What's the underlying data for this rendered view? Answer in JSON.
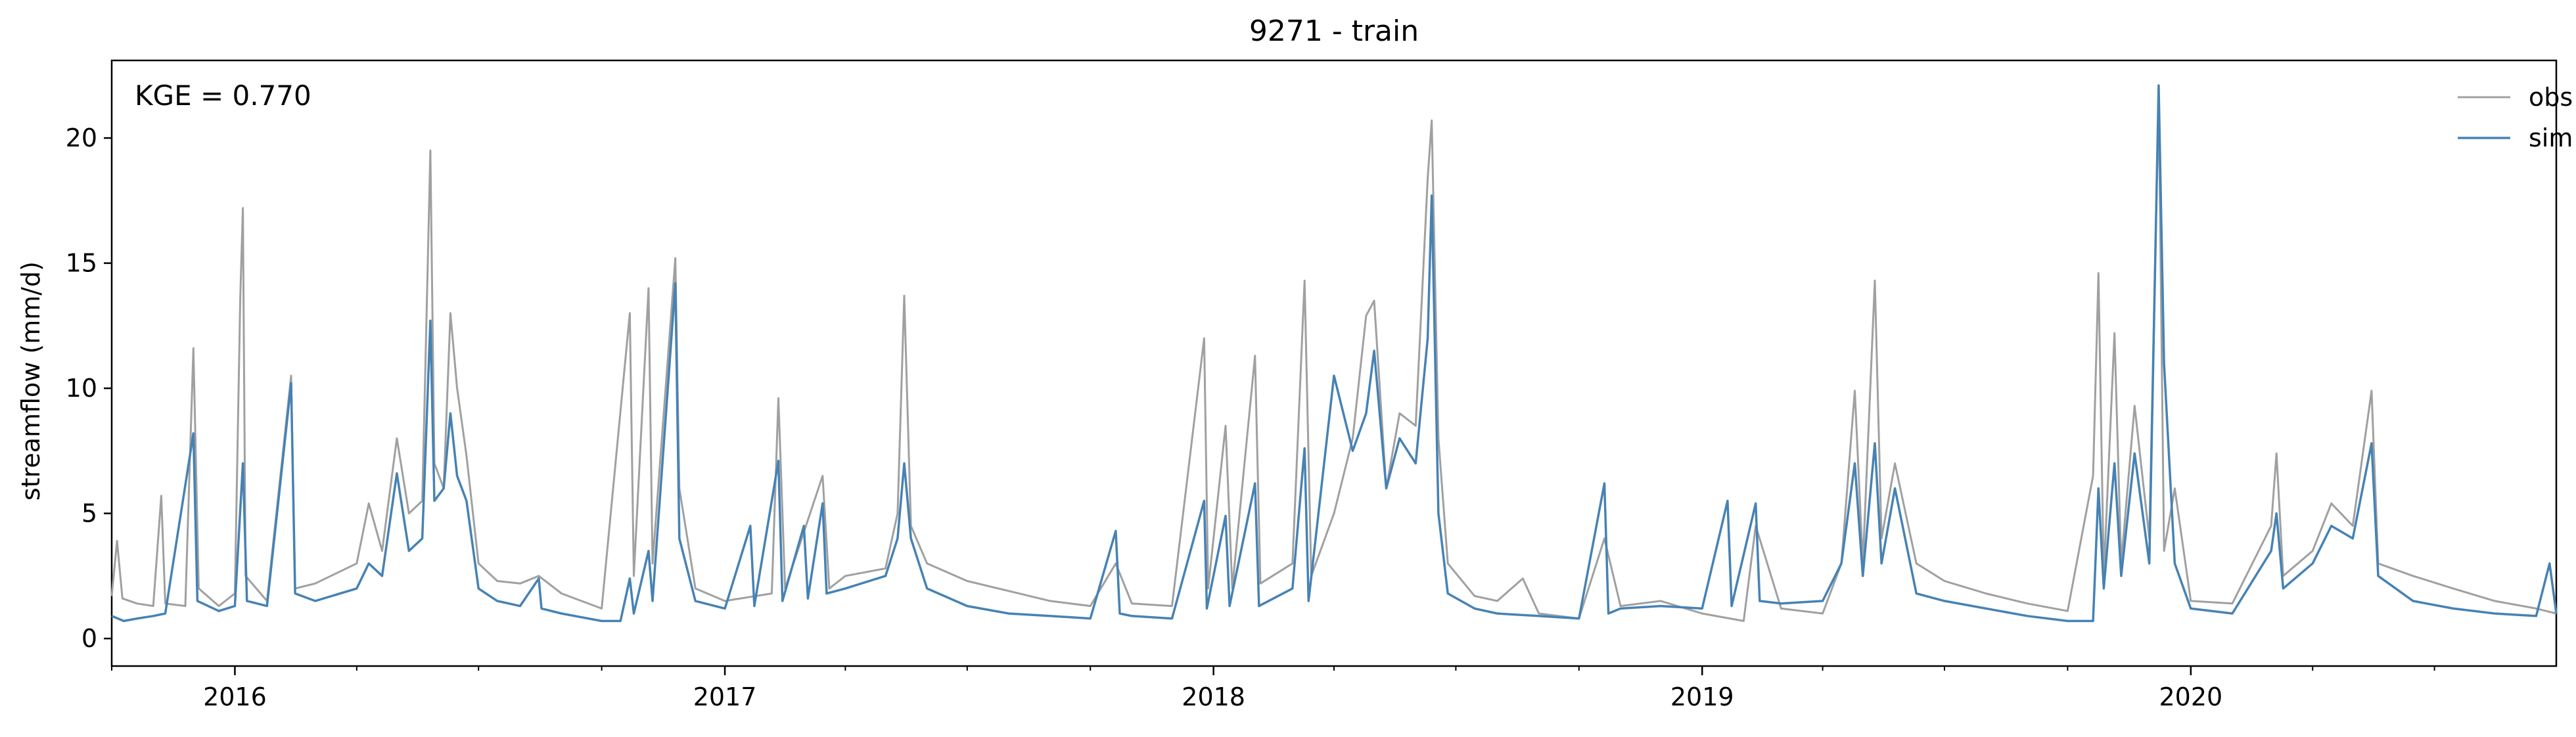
{
  "chart_data": {
    "type": "line",
    "title": "9271 - train",
    "xlabel": "",
    "ylabel": "streamflow (mm/d)",
    "annotation": "KGE = 0.770",
    "xlim": [
      "2015-10-01",
      "2020-09-30"
    ],
    "ylim": [
      -1.1,
      23.1
    ],
    "yticks": [
      0,
      5,
      10,
      15,
      20
    ],
    "ytick_labels": [
      "0",
      "5",
      "10",
      "15",
      "20"
    ],
    "xticks": [
      "2016-01-01",
      "2017-01-01",
      "2018-01-01",
      "2019-01-01",
      "2020-01-01"
    ],
    "xtick_labels": [
      "2016",
      "2017",
      "2018",
      "2019",
      "2020"
    ],
    "grid": false,
    "legend": {
      "position": "top-right",
      "frame": false
    },
    "series": [
      {
        "name": "obs",
        "color": "#a0a0a0",
        "points": [
          [
            "2015-10-01",
            1.7
          ],
          [
            "2015-10-05",
            3.9
          ],
          [
            "2015-10-09",
            1.6
          ],
          [
            "2015-10-20",
            1.4
          ],
          [
            "2015-11-01",
            1.3
          ],
          [
            "2015-11-07",
            5.7
          ],
          [
            "2015-11-10",
            1.4
          ],
          [
            "2015-11-25",
            1.3
          ],
          [
            "2015-12-01",
            11.6
          ],
          [
            "2015-12-05",
            2.0
          ],
          [
            "2015-12-20",
            1.3
          ],
          [
            "2016-01-01",
            1.8
          ],
          [
            "2016-01-05",
            13.6
          ],
          [
            "2016-01-07",
            17.2
          ],
          [
            "2016-01-09",
            2.5
          ],
          [
            "2016-01-25",
            1.5
          ],
          [
            "2016-02-12",
            10.5
          ],
          [
            "2016-02-15",
            2.0
          ],
          [
            "2016-03-01",
            2.2
          ],
          [
            "2016-04-01",
            3.0
          ],
          [
            "2016-04-10",
            5.4
          ],
          [
            "2016-04-20",
            3.5
          ],
          [
            "2016-05-01",
            8.0
          ],
          [
            "2016-05-10",
            5.0
          ],
          [
            "2016-05-20",
            5.5
          ],
          [
            "2016-05-26",
            19.5
          ],
          [
            "2016-05-29",
            7.0
          ],
          [
            "2016-06-05",
            6.0
          ],
          [
            "2016-06-10",
            13.0
          ],
          [
            "2016-06-15",
            10.0
          ],
          [
            "2016-06-22",
            7.3
          ],
          [
            "2016-07-01",
            3.0
          ],
          [
            "2016-07-15",
            2.3
          ],
          [
            "2016-08-01",
            2.2
          ],
          [
            "2016-08-15",
            2.5
          ],
          [
            "2016-09-01",
            1.8
          ],
          [
            "2016-10-01",
            1.2
          ],
          [
            "2016-10-22",
            13.0
          ],
          [
            "2016-10-25",
            2.5
          ],
          [
            "2016-11-05",
            14.0
          ],
          [
            "2016-11-08",
            3.0
          ],
          [
            "2016-11-25",
            15.2
          ],
          [
            "2016-11-28",
            6.0
          ],
          [
            "2016-12-10",
            2.0
          ],
          [
            "2017-01-01",
            1.5
          ],
          [
            "2017-02-05",
            1.8
          ],
          [
            "2017-02-10",
            9.6
          ],
          [
            "2017-02-15",
            2.0
          ],
          [
            "2017-03-15",
            6.5
          ],
          [
            "2017-03-20",
            2.0
          ],
          [
            "2017-04-01",
            2.5
          ],
          [
            "2017-05-01",
            2.8
          ],
          [
            "2017-05-10",
            5.0
          ],
          [
            "2017-05-15",
            13.7
          ],
          [
            "2017-05-20",
            4.5
          ],
          [
            "2017-06-01",
            3.0
          ],
          [
            "2017-07-01",
            2.3
          ],
          [
            "2017-08-01",
            1.9
          ],
          [
            "2017-09-01",
            1.5
          ],
          [
            "2017-10-01",
            1.3
          ],
          [
            "2017-10-20",
            3.0
          ],
          [
            "2017-11-01",
            1.4
          ],
          [
            "2017-12-01",
            1.3
          ],
          [
            "2017-12-25",
            12.0
          ],
          [
            "2017-12-28",
            2.0
          ],
          [
            "2018-01-10",
            8.5
          ],
          [
            "2018-01-15",
            2.0
          ],
          [
            "2018-02-01",
            11.3
          ],
          [
            "2018-02-05",
            2.2
          ],
          [
            "2018-03-01",
            3.0
          ],
          [
            "2018-03-10",
            14.3
          ],
          [
            "2018-03-15",
            2.5
          ],
          [
            "2018-04-01",
            5.0
          ],
          [
            "2018-04-15",
            8.0
          ],
          [
            "2018-04-25",
            12.9
          ],
          [
            "2018-05-01",
            13.5
          ],
          [
            "2018-05-10",
            6.0
          ],
          [
            "2018-05-20",
            9.0
          ],
          [
            "2018-06-01",
            8.5
          ],
          [
            "2018-06-10",
            18.4
          ],
          [
            "2018-06-13",
            20.7
          ],
          [
            "2018-06-18",
            8.0
          ],
          [
            "2018-06-25",
            3.0
          ],
          [
            "2018-07-15",
            1.7
          ],
          [
            "2018-08-01",
            1.5
          ],
          [
            "2018-08-20",
            2.4
          ],
          [
            "2018-09-01",
            1.0
          ],
          [
            "2018-10-01",
            0.8
          ],
          [
            "2018-10-20",
            4.0
          ],
          [
            "2018-11-01",
            1.3
          ],
          [
            "2018-12-01",
            1.5
          ],
          [
            "2019-01-01",
            1.0
          ],
          [
            "2019-02-01",
            0.7
          ],
          [
            "2019-02-10",
            4.5
          ],
          [
            "2019-03-01",
            1.2
          ],
          [
            "2019-04-01",
            1.0
          ],
          [
            "2019-04-15",
            3.0
          ],
          [
            "2019-04-25",
            9.9
          ],
          [
            "2019-05-01",
            3.0
          ],
          [
            "2019-05-10",
            14.3
          ],
          [
            "2019-05-15",
            4.0
          ],
          [
            "2019-05-25",
            7.0
          ],
          [
            "2019-06-10",
            3.0
          ],
          [
            "2019-07-01",
            2.3
          ],
          [
            "2019-08-01",
            1.8
          ],
          [
            "2019-09-01",
            1.4
          ],
          [
            "2019-10-01",
            1.1
          ],
          [
            "2019-10-20",
            6.5
          ],
          [
            "2019-10-24",
            14.6
          ],
          [
            "2019-10-28",
            2.5
          ],
          [
            "2019-11-05",
            12.2
          ],
          [
            "2019-11-10",
            3.0
          ],
          [
            "2019-11-20",
            9.3
          ],
          [
            "2019-12-01",
            4.0
          ],
          [
            "2019-12-08",
            21.8
          ],
          [
            "2019-12-12",
            3.5
          ],
          [
            "2019-12-20",
            6.0
          ],
          [
            "2020-01-01",
            1.5
          ],
          [
            "2020-02-01",
            1.4
          ],
          [
            "2020-03-01",
            4.5
          ],
          [
            "2020-03-05",
            7.4
          ],
          [
            "2020-03-10",
            2.5
          ],
          [
            "2020-04-01",
            3.5
          ],
          [
            "2020-04-15",
            5.4
          ],
          [
            "2020-05-01",
            4.5
          ],
          [
            "2020-05-15",
            9.9
          ],
          [
            "2020-05-20",
            3.0
          ],
          [
            "2020-06-15",
            2.5
          ],
          [
            "2020-07-15",
            2.0
          ],
          [
            "2020-08-15",
            1.5
          ],
          [
            "2020-09-15",
            1.2
          ],
          [
            "2020-09-30",
            1.0
          ]
        ]
      },
      {
        "name": "sim",
        "color": "#4682b4",
        "points": [
          [
            "2015-10-01",
            0.9
          ],
          [
            "2015-10-10",
            0.7
          ],
          [
            "2015-10-20",
            0.8
          ],
          [
            "2015-11-01",
            0.9
          ],
          [
            "2015-11-10",
            1.0
          ],
          [
            "2015-12-01",
            8.2
          ],
          [
            "2015-12-04",
            1.5
          ],
          [
            "2015-12-20",
            1.1
          ],
          [
            "2016-01-01",
            1.3
          ],
          [
            "2016-01-07",
            7.0
          ],
          [
            "2016-01-10",
            1.5
          ],
          [
            "2016-01-25",
            1.3
          ],
          [
            "2016-02-12",
            10.2
          ],
          [
            "2016-02-15",
            1.8
          ],
          [
            "2016-03-01",
            1.5
          ],
          [
            "2016-04-01",
            2.0
          ],
          [
            "2016-04-10",
            3.0
          ],
          [
            "2016-04-20",
            2.5
          ],
          [
            "2016-05-01",
            6.6
          ],
          [
            "2016-05-10",
            3.5
          ],
          [
            "2016-05-20",
            4.0
          ],
          [
            "2016-05-26",
            12.7
          ],
          [
            "2016-05-29",
            5.5
          ],
          [
            "2016-06-05",
            6.0
          ],
          [
            "2016-06-10",
            9.0
          ],
          [
            "2016-06-15",
            6.5
          ],
          [
            "2016-06-22",
            5.5
          ],
          [
            "2016-07-01",
            2.0
          ],
          [
            "2016-07-15",
            1.5
          ],
          [
            "2016-08-01",
            1.3
          ],
          [
            "2016-08-15",
            2.4
          ],
          [
            "2016-08-17",
            1.2
          ],
          [
            "2016-09-01",
            1.0
          ],
          [
            "2016-10-01",
            0.7
          ],
          [
            "2016-10-15",
            0.7
          ],
          [
            "2016-10-22",
            2.4
          ],
          [
            "2016-10-25",
            1.0
          ],
          [
            "2016-11-05",
            3.5
          ],
          [
            "2016-11-08",
            1.5
          ],
          [
            "2016-11-25",
            14.2
          ],
          [
            "2016-11-28",
            4.0
          ],
          [
            "2016-12-10",
            1.5
          ],
          [
            "2017-01-01",
            1.2
          ],
          [
            "2017-01-20",
            4.5
          ],
          [
            "2017-01-23",
            1.3
          ],
          [
            "2017-02-10",
            7.1
          ],
          [
            "2017-02-13",
            1.5
          ],
          [
            "2017-03-01",
            4.5
          ],
          [
            "2017-03-04",
            1.6
          ],
          [
            "2017-03-15",
            5.4
          ],
          [
            "2017-03-18",
            1.8
          ],
          [
            "2017-04-01",
            2.0
          ],
          [
            "2017-05-01",
            2.5
          ],
          [
            "2017-05-10",
            4.0
          ],
          [
            "2017-05-15",
            7.0
          ],
          [
            "2017-05-20",
            4.0
          ],
          [
            "2017-06-01",
            2.0
          ],
          [
            "2017-07-01",
            1.3
          ],
          [
            "2017-08-01",
            1.0
          ],
          [
            "2017-09-01",
            0.9
          ],
          [
            "2017-10-01",
            0.8
          ],
          [
            "2017-10-20",
            4.3
          ],
          [
            "2017-10-23",
            1.0
          ],
          [
            "2017-11-01",
            0.9
          ],
          [
            "2017-12-01",
            0.8
          ],
          [
            "2017-12-25",
            5.5
          ],
          [
            "2017-12-27",
            1.2
          ],
          [
            "2018-01-10",
            4.9
          ],
          [
            "2018-01-13",
            1.3
          ],
          [
            "2018-02-01",
            6.2
          ],
          [
            "2018-02-04",
            1.3
          ],
          [
            "2018-03-01",
            2.0
          ],
          [
            "2018-03-10",
            7.6
          ],
          [
            "2018-03-13",
            1.5
          ],
          [
            "2018-04-01",
            10.5
          ],
          [
            "2018-04-15",
            7.5
          ],
          [
            "2018-04-25",
            9.0
          ],
          [
            "2018-05-01",
            11.5
          ],
          [
            "2018-05-10",
            6.0
          ],
          [
            "2018-05-20",
            8.0
          ],
          [
            "2018-06-01",
            7.0
          ],
          [
            "2018-06-10",
            12.0
          ],
          [
            "2018-06-13",
            17.7
          ],
          [
            "2018-06-18",
            5.0
          ],
          [
            "2018-06-25",
            1.8
          ],
          [
            "2018-07-15",
            1.2
          ],
          [
            "2018-08-01",
            1.0
          ],
          [
            "2018-09-01",
            0.9
          ],
          [
            "2018-10-01",
            0.8
          ],
          [
            "2018-10-20",
            6.2
          ],
          [
            "2018-10-23",
            1.0
          ],
          [
            "2018-11-01",
            1.2
          ],
          [
            "2018-12-01",
            1.3
          ],
          [
            "2019-01-01",
            1.2
          ],
          [
            "2019-01-20",
            5.5
          ],
          [
            "2019-01-23",
            1.3
          ],
          [
            "2019-02-10",
            5.4
          ],
          [
            "2019-02-13",
            1.5
          ],
          [
            "2019-03-01",
            1.4
          ],
          [
            "2019-04-01",
            1.5
          ],
          [
            "2019-04-15",
            3.0
          ],
          [
            "2019-04-25",
            7.0
          ],
          [
            "2019-05-01",
            2.5
          ],
          [
            "2019-05-10",
            7.8
          ],
          [
            "2019-05-15",
            3.0
          ],
          [
            "2019-05-25",
            6.0
          ],
          [
            "2019-06-10",
            1.8
          ],
          [
            "2019-07-01",
            1.5
          ],
          [
            "2019-08-01",
            1.2
          ],
          [
            "2019-09-01",
            0.9
          ],
          [
            "2019-10-01",
            0.7
          ],
          [
            "2019-10-20",
            0.7
          ],
          [
            "2019-10-24",
            6.0
          ],
          [
            "2019-10-28",
            2.0
          ],
          [
            "2019-11-05",
            7.0
          ],
          [
            "2019-11-10",
            2.5
          ],
          [
            "2019-11-20",
            7.4
          ],
          [
            "2019-12-01",
            3.0
          ],
          [
            "2019-12-08",
            22.1
          ],
          [
            "2019-12-12",
            11.0
          ],
          [
            "2019-12-20",
            3.0
          ],
          [
            "2020-01-01",
            1.2
          ],
          [
            "2020-02-01",
            1.0
          ],
          [
            "2020-03-01",
            3.5
          ],
          [
            "2020-03-05",
            5.0
          ],
          [
            "2020-03-10",
            2.0
          ],
          [
            "2020-04-01",
            3.0
          ],
          [
            "2020-04-15",
            4.5
          ],
          [
            "2020-05-01",
            4.0
          ],
          [
            "2020-05-15",
            7.8
          ],
          [
            "2020-05-20",
            2.5
          ],
          [
            "2020-06-15",
            1.5
          ],
          [
            "2020-07-15",
            1.2
          ],
          [
            "2020-08-15",
            1.0
          ],
          [
            "2020-09-15",
            0.9
          ],
          [
            "2020-09-25",
            3.0
          ],
          [
            "2020-09-30",
            1.0
          ]
        ]
      }
    ]
  }
}
